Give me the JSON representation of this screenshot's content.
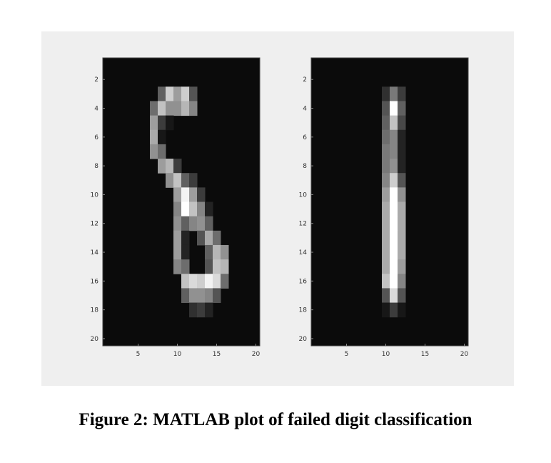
{
  "caption": "Figure 2: MATLAB plot of failed digit classification",
  "colors": {
    "figure_background": "#efefef",
    "axes_frame": "#444444",
    "tick_text": "#333333"
  },
  "chart_data": [
    {
      "type": "heatmap",
      "colormap": "gray",
      "x_ticks": [
        5,
        10,
        15,
        20
      ],
      "y_ticks": [
        2,
        4,
        6,
        8,
        10,
        12,
        14,
        16,
        18,
        20
      ],
      "xlim": [
        0.5,
        20.5
      ],
      "ylim": [
        0.5,
        20.5
      ],
      "y_direction": "reverse",
      "rows": 20,
      "cols": 20,
      "pixels": [
        [
          0,
          0,
          0,
          0,
          0,
          0,
          0,
          0,
          0,
          0,
          0,
          0,
          0,
          0,
          0,
          0,
          0,
          0,
          0,
          0
        ],
        [
          0,
          0,
          0,
          0,
          0,
          0,
          0,
          0,
          0,
          0,
          0,
          0,
          0,
          0,
          0,
          0,
          0,
          0,
          0,
          0
        ],
        [
          0,
          0,
          0,
          0,
          0,
          0,
          0,
          0.35,
          0.8,
          0.6,
          0.8,
          0.3,
          0,
          0,
          0,
          0,
          0,
          0,
          0,
          0
        ],
        [
          0,
          0,
          0,
          0,
          0,
          0,
          0.4,
          0.75,
          0.55,
          0.55,
          0.7,
          0.5,
          0,
          0,
          0,
          0,
          0,
          0,
          0,
          0
        ],
        [
          0,
          0,
          0,
          0,
          0,
          0,
          0.6,
          0.2,
          0.05,
          0,
          0,
          0,
          0,
          0,
          0,
          0,
          0,
          0,
          0,
          0
        ],
        [
          0,
          0,
          0,
          0,
          0,
          0,
          0.65,
          0.05,
          0,
          0,
          0,
          0,
          0,
          0,
          0,
          0,
          0,
          0,
          0,
          0
        ],
        [
          0,
          0,
          0,
          0,
          0,
          0,
          0.55,
          0.4,
          0,
          0,
          0,
          0,
          0,
          0,
          0,
          0,
          0,
          0,
          0,
          0
        ],
        [
          0,
          0,
          0,
          0,
          0,
          0,
          0,
          0.6,
          0.7,
          0.2,
          0,
          0,
          0,
          0,
          0,
          0,
          0,
          0,
          0,
          0
        ],
        [
          0,
          0,
          0,
          0,
          0,
          0,
          0,
          0,
          0.55,
          0.75,
          0.35,
          0.2,
          0,
          0,
          0,
          0,
          0,
          0,
          0,
          0
        ],
        [
          0,
          0,
          0,
          0,
          0,
          0,
          0,
          0,
          0,
          0.6,
          0.95,
          0.6,
          0.2,
          0,
          0,
          0,
          0,
          0,
          0,
          0
        ],
        [
          0,
          0,
          0,
          0,
          0,
          0,
          0,
          0,
          0,
          0.5,
          1.0,
          0.75,
          0.5,
          0.1,
          0,
          0,
          0,
          0,
          0,
          0
        ],
        [
          0,
          0,
          0,
          0,
          0,
          0,
          0,
          0,
          0,
          0.55,
          0.35,
          0.5,
          0.55,
          0.35,
          0,
          0,
          0,
          0,
          0,
          0
        ],
        [
          0,
          0,
          0,
          0,
          0,
          0,
          0,
          0,
          0,
          0.6,
          0.1,
          0,
          0.3,
          0.65,
          0.4,
          0,
          0,
          0,
          0,
          0
        ],
        [
          0,
          0,
          0,
          0,
          0,
          0,
          0,
          0,
          0,
          0.6,
          0.1,
          0,
          0,
          0.35,
          0.7,
          0.55,
          0,
          0,
          0,
          0
        ],
        [
          0,
          0,
          0,
          0,
          0,
          0,
          0,
          0,
          0,
          0.5,
          0.4,
          0,
          0,
          0.3,
          0.75,
          0.7,
          0,
          0,
          0,
          0
        ],
        [
          0,
          0,
          0,
          0,
          0,
          0,
          0,
          0,
          0,
          0,
          0.75,
          0.85,
          0.8,
          0.95,
          0.85,
          0.4,
          0,
          0,
          0,
          0
        ],
        [
          0,
          0,
          0,
          0,
          0,
          0,
          0,
          0,
          0,
          0,
          0.35,
          0.55,
          0.55,
          0.5,
          0.3,
          0,
          0,
          0,
          0,
          0
        ],
        [
          0,
          0,
          0,
          0,
          0,
          0,
          0,
          0,
          0,
          0,
          0,
          0.15,
          0.2,
          0.1,
          0,
          0,
          0,
          0,
          0,
          0
        ],
        [
          0,
          0,
          0,
          0,
          0,
          0,
          0,
          0,
          0,
          0,
          0,
          0,
          0,
          0,
          0,
          0,
          0,
          0,
          0,
          0
        ],
        [
          0,
          0,
          0,
          0,
          0,
          0,
          0,
          0,
          0,
          0,
          0,
          0,
          0,
          0,
          0,
          0,
          0,
          0,
          0,
          0
        ]
      ]
    },
    {
      "type": "heatmap",
      "colormap": "gray",
      "x_ticks": [
        5,
        10,
        15,
        20
      ],
      "y_ticks": [
        2,
        4,
        6,
        8,
        10,
        12,
        14,
        16,
        18,
        20
      ],
      "xlim": [
        0.5,
        20.5
      ],
      "ylim": [
        0.5,
        20.5
      ],
      "y_direction": "reverse",
      "rows": 20,
      "cols": 20,
      "pixels": [
        [
          0,
          0,
          0,
          0,
          0,
          0,
          0,
          0,
          0,
          0,
          0,
          0,
          0,
          0,
          0,
          0,
          0,
          0,
          0,
          0
        ],
        [
          0,
          0,
          0,
          0,
          0,
          0,
          0,
          0,
          0,
          0,
          0,
          0,
          0,
          0,
          0,
          0,
          0,
          0,
          0,
          0
        ],
        [
          0,
          0,
          0,
          0,
          0,
          0,
          0,
          0,
          0,
          0.15,
          0.45,
          0.2,
          0,
          0,
          0,
          0,
          0,
          0,
          0,
          0
        ],
        [
          0,
          0,
          0,
          0,
          0,
          0,
          0,
          0,
          0,
          0.3,
          1.0,
          0.35,
          0,
          0,
          0,
          0,
          0,
          0,
          0,
          0
        ],
        [
          0,
          0,
          0,
          0,
          0,
          0,
          0,
          0,
          0,
          0.35,
          0.75,
          0.25,
          0,
          0,
          0,
          0,
          0,
          0,
          0,
          0
        ],
        [
          0,
          0,
          0,
          0,
          0,
          0,
          0,
          0,
          0,
          0.4,
          0.5,
          0.1,
          0,
          0,
          0,
          0,
          0,
          0,
          0,
          0
        ],
        [
          0,
          0,
          0,
          0,
          0,
          0,
          0,
          0,
          0,
          0.45,
          0.5,
          0.1,
          0,
          0,
          0,
          0,
          0,
          0,
          0,
          0
        ],
        [
          0,
          0,
          0,
          0,
          0,
          0,
          0,
          0,
          0,
          0.45,
          0.55,
          0.1,
          0,
          0,
          0,
          0,
          0,
          0,
          0,
          0
        ],
        [
          0,
          0,
          0,
          0,
          0,
          0,
          0,
          0,
          0,
          0.5,
          0.8,
          0.3,
          0,
          0,
          0,
          0,
          0,
          0,
          0,
          0
        ],
        [
          0,
          0,
          0,
          0,
          0,
          0,
          0,
          0,
          0,
          0.6,
          1.0,
          0.55,
          0,
          0,
          0,
          0,
          0,
          0,
          0,
          0
        ],
        [
          0,
          0,
          0,
          0,
          0,
          0,
          0,
          0,
          0,
          0.65,
          1.0,
          0.65,
          0,
          0,
          0,
          0,
          0,
          0,
          0,
          0
        ],
        [
          0,
          0,
          0,
          0,
          0,
          0,
          0,
          0,
          0,
          0.65,
          1.0,
          0.65,
          0,
          0,
          0,
          0,
          0,
          0,
          0,
          0
        ],
        [
          0,
          0,
          0,
          0,
          0,
          0,
          0,
          0,
          0,
          0.65,
          1.0,
          0.65,
          0,
          0,
          0,
          0,
          0,
          0,
          0,
          0
        ],
        [
          0,
          0,
          0,
          0,
          0,
          0,
          0,
          0,
          0,
          0.65,
          1.0,
          0.65,
          0,
          0,
          0,
          0,
          0,
          0,
          0,
          0
        ],
        [
          0,
          0,
          0,
          0,
          0,
          0,
          0,
          0,
          0,
          0.65,
          1.0,
          0.6,
          0,
          0,
          0,
          0,
          0,
          0,
          0,
          0
        ],
        [
          0,
          0,
          0,
          0,
          0,
          0,
          0,
          0,
          0,
          0.75,
          1.0,
          0.5,
          0,
          0,
          0,
          0,
          0,
          0,
          0,
          0
        ],
        [
          0,
          0,
          0,
          0,
          0,
          0,
          0,
          0,
          0,
          0.3,
          0.85,
          0.3,
          0,
          0,
          0,
          0,
          0,
          0,
          0,
          0
        ],
        [
          0,
          0,
          0,
          0,
          0,
          0,
          0,
          0,
          0,
          0.05,
          0.2,
          0.05,
          0,
          0,
          0,
          0,
          0,
          0,
          0,
          0
        ],
        [
          0,
          0,
          0,
          0,
          0,
          0,
          0,
          0,
          0,
          0,
          0,
          0,
          0,
          0,
          0,
          0,
          0,
          0,
          0,
          0
        ],
        [
          0,
          0,
          0,
          0,
          0,
          0,
          0,
          0,
          0,
          0,
          0,
          0,
          0,
          0,
          0,
          0,
          0,
          0,
          0,
          0
        ]
      ]
    }
  ]
}
